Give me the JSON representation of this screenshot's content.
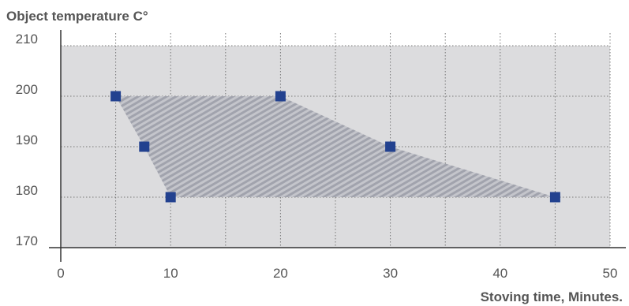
{
  "chart_data": {
    "type": "area",
    "title": "",
    "ylabel": "Object temperature C°",
    "xlabel": "Stoving time, Minutes.",
    "xlim": [
      0,
      50
    ],
    "ylim": [
      170,
      210
    ],
    "x_ticks": [
      0,
      10,
      20,
      30,
      40,
      50
    ],
    "y_ticks": [
      170,
      180,
      190,
      200,
      210
    ],
    "grid": true,
    "points": [
      {
        "x": 5,
        "y": 200
      },
      {
        "x": 20,
        "y": 200
      },
      {
        "x": 30,
        "y": 190
      },
      {
        "x": 45,
        "y": 180
      },
      {
        "x": 10,
        "y": 180
      },
      {
        "x": 7.6,
        "y": 190
      }
    ],
    "region": [
      {
        "x": 5,
        "y": 200
      },
      {
        "x": 20,
        "y": 200
      },
      {
        "x": 30,
        "y": 190
      },
      {
        "x": 45,
        "y": 180
      },
      {
        "x": 10,
        "y": 180
      },
      {
        "x": 7.6,
        "y": 190
      }
    ],
    "colors": {
      "plot_background": "#dcdcde",
      "marker": "#22418f",
      "hatch": "#a7a9b2",
      "axis": "#333333",
      "grid": "#777777",
      "text": "#555555"
    }
  }
}
